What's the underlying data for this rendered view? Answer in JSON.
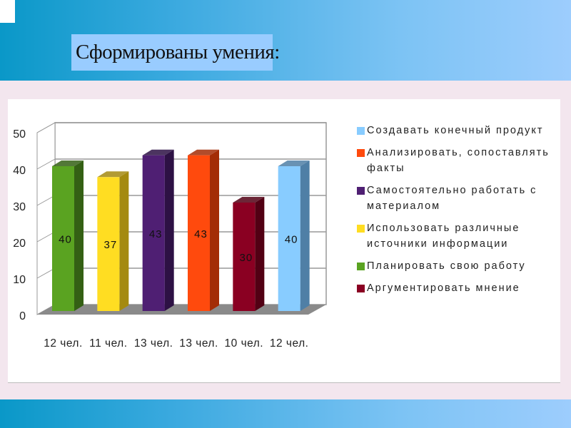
{
  "slide": {
    "title": "Сформированы умения:"
  },
  "colors": {
    "band": "#0a98c8",
    "title_bg": "#99ccff",
    "slide_bg": "#f3e6ee"
  },
  "chart_data": {
    "type": "bar",
    "style": "3d-column",
    "categories": [
      "12 чел.",
      "11 чел.",
      "13 чел.",
      "13 чел.",
      "10 чел.",
      "12 чел."
    ],
    "values": [
      40,
      37,
      43,
      43,
      30,
      40
    ],
    "bar_colors": [
      "#5aa321",
      "#ffdd22",
      "#4f1f73",
      "#ff4a0d",
      "#8a0022",
      "#88ccff"
    ],
    "side_colors": [
      "#346014",
      "#a48a10",
      "#2d1144",
      "#a32d06",
      "#520014",
      "#4f7fa6"
    ],
    "yticks": [
      0,
      10,
      20,
      30,
      40,
      50
    ],
    "ylim": [
      0,
      50
    ],
    "grid": true,
    "legend_position": "right",
    "legend": [
      {
        "label": "Создавать конечный продукт",
        "color": "#88ccff"
      },
      {
        "label": "Анализировать, сопоставлять факты",
        "color": "#ff4a0d"
      },
      {
        "label": "Самостоятельно работать с материалом",
        "color": "#4f1f73"
      },
      {
        "label": "Использовать различные источники информации",
        "color": "#ffdd22"
      },
      {
        "label": "Планировать свою работу",
        "color": "#5aa321"
      },
      {
        "label": "Аргументировать мнение",
        "color": "#8a0022"
      }
    ]
  }
}
